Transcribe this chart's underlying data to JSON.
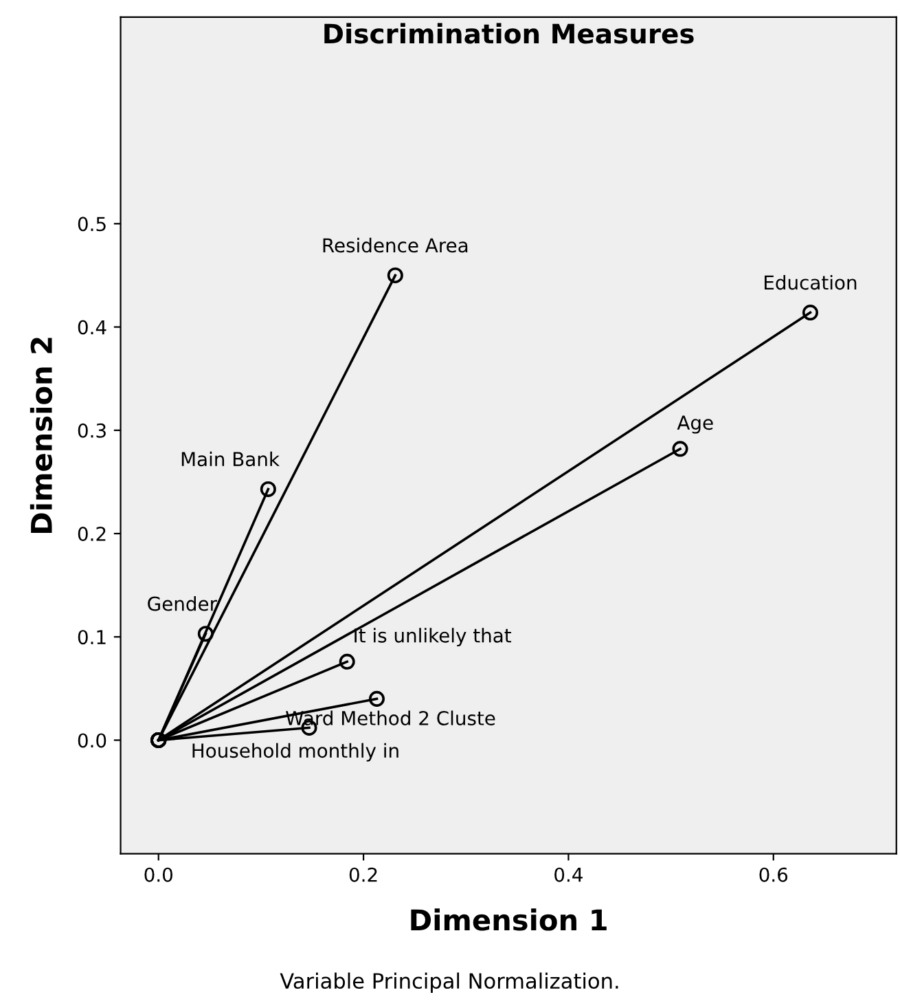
{
  "chart_data": {
    "type": "line",
    "title": "Discrimination Measures",
    "xlabel": "Dimension 1",
    "ylabel": "Dimension 2",
    "annotations": [
      "Variable Principal Normalization."
    ],
    "xlim": [
      -0.037,
      0.72
    ],
    "ylim": [
      -0.11,
      0.7
    ],
    "xticks": [
      {
        "value": 0,
        "label": "0.0"
      },
      0.2,
      0.4,
      0.6
    ],
    "yticks": [
      {
        "value": 0,
        "label": "0.0"
      },
      0.1,
      0.2,
      0.3,
      0.4,
      0.5
    ],
    "grid": false,
    "legend": false,
    "marker": "circle",
    "line_style": "solid",
    "series": [
      {
        "name": "Residence Area",
        "color": "#000000",
        "x": [
          0,
          0.231
        ],
        "values": [
          0,
          0.45
        ]
      },
      {
        "name": "Education",
        "color": "#000000",
        "x": [
          0,
          0.636
        ],
        "values": [
          0,
          0.414
        ]
      },
      {
        "name": "Age",
        "color": "#000000",
        "x": [
          0,
          0.509
        ],
        "values": [
          0,
          0.282
        ]
      },
      {
        "name": "Main Bank",
        "color": "#000000",
        "x": [
          0,
          0.107
        ],
        "values": [
          0,
          0.243
        ]
      },
      {
        "name": "Gender",
        "color": "#000000",
        "x": [
          0,
          0.046
        ],
        "values": [
          0,
          0.103
        ]
      },
      {
        "name": "It is unlikely that",
        "color": "#000000",
        "x": [
          0,
          0.184
        ],
        "values": [
          0,
          0.076
        ]
      },
      {
        "name": "Ward Method 2 Cluste",
        "color": "#000000",
        "x": [
          0,
          0.213
        ],
        "values": [
          0,
          0.04
        ]
      },
      {
        "name": "Household monthly in",
        "color": "#000000",
        "x": [
          0,
          0.147
        ],
        "values": [
          0,
          0.012
        ]
      }
    ]
  }
}
